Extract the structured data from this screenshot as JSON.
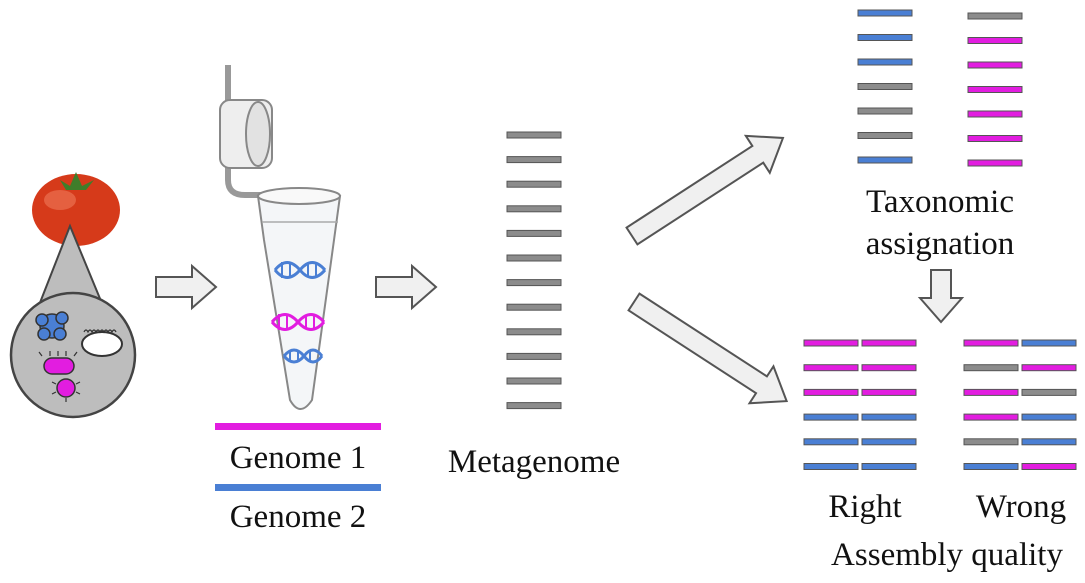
{
  "labels": {
    "genome1": "Genome 1",
    "genome2": "Genome 2",
    "metagenome": "Metagenome",
    "taxonomic_line1": "Taxonomic",
    "taxonomic_line2": "assignation",
    "right": "Right",
    "wrong": "Wrong",
    "assembly_quality": "Assembly quality"
  },
  "colors": {
    "genome1": "#e21de0",
    "genome2": "#4a7fd4",
    "unassigned": "#8c8c8c",
    "bar_outline": "#555555",
    "arrow_fill": "#f0f0f0",
    "arrow_stroke": "#555555",
    "tomato": "#d63a1a"
  },
  "icons": {
    "tomato": "tomato-icon",
    "magnifier": "magnifier-circle-icon",
    "tube": "microcentrifuge-tube-icon",
    "dna": "dna-helix-icon"
  },
  "metagenome_reads": [
    "unassigned",
    "unassigned",
    "unassigned",
    "unassigned",
    "unassigned",
    "unassigned",
    "unassigned",
    "unassigned",
    "unassigned",
    "unassigned",
    "unassigned",
    "unassigned"
  ],
  "taxonomic_reads": {
    "left": [
      "genome2",
      "genome2",
      "genome2",
      "unassigned",
      "unassigned",
      "unassigned",
      "genome2"
    ],
    "right": [
      "unassigned",
      "genome1",
      "genome1",
      "genome1",
      "genome1",
      "genome1",
      "genome1"
    ]
  },
  "assembly": {
    "right": [
      [
        "genome1",
        "genome1"
      ],
      [
        "genome1",
        "genome1"
      ],
      [
        "genome1",
        "genome1"
      ],
      [
        "genome2",
        "genome2"
      ],
      [
        "genome2",
        "genome2"
      ],
      [
        "genome2",
        "genome2"
      ]
    ],
    "wrong": [
      [
        "genome1",
        "genome2"
      ],
      [
        "unassigned",
        "genome1"
      ],
      [
        "genome1",
        "unassigned"
      ],
      [
        "genome1",
        "genome2"
      ],
      [
        "unassigned",
        "genome2"
      ],
      [
        "genome2",
        "genome1"
      ]
    ]
  }
}
